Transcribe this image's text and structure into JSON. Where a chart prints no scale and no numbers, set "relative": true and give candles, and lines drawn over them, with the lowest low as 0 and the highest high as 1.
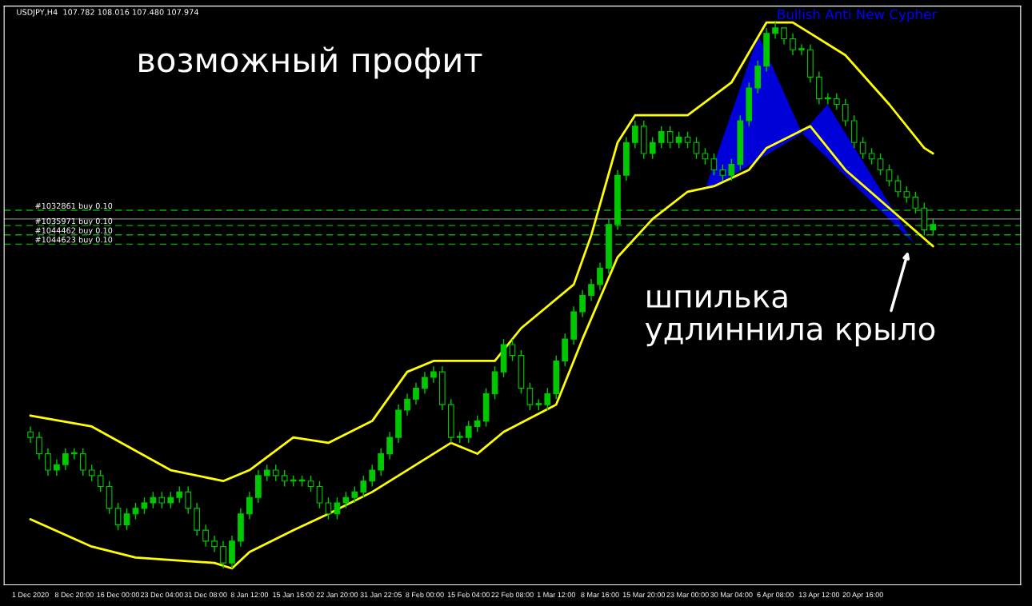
{
  "chart_data": {
    "type": "candlestick",
    "relative": true,
    "title": "USDJPY,H4  107.782 108.016 107.480 107.974",
    "categories": [
      "1 Dec 2020",
      null,
      null,
      null,
      null,
      "8 Dec 20:00",
      null,
      null,
      null,
      null,
      "16 Dec 00:00",
      null,
      null,
      null,
      null,
      "23 Dec 04:00",
      null,
      null,
      null,
      null,
      "31 Dec 08:00",
      null,
      null,
      null,
      null,
      "8 Jan 12:00",
      null,
      null,
      null,
      null,
      "15 Jan 16:00",
      null,
      null,
      null,
      null,
      "22 Jan 20:00",
      null,
      null,
      null,
      null,
      "31 Jan 22:05",
      null,
      null,
      null,
      null,
      "8 Feb 00:00",
      null,
      null,
      null,
      null,
      "15 Feb 04:00",
      null,
      null,
      null,
      null,
      "22 Feb 08:00",
      null,
      null,
      null,
      null,
      "1 Mar 12:00",
      null,
      null,
      null,
      null,
      "8 Mar 16:00",
      null,
      null,
      null,
      null,
      "15 Mar 20:00",
      null,
      null,
      null,
      null,
      "23 Mar 00:00",
      null,
      null,
      null,
      null,
      "30 Mar 04:00",
      null,
      null,
      null,
      null,
      "6 Apr 08:00",
      null,
      null,
      null,
      null,
      "13 Apr 12:00",
      null,
      null,
      null,
      null,
      "20 Apr 16:00",
      null,
      null,
      null,
      null,
      null,
      null,
      null,
      null
    ],
    "color": "#00c800",
    "ohlc": [
      [
        0.25,
        0.26,
        0.23,
        0.24
      ],
      [
        0.24,
        0.25,
        0.2,
        0.21
      ],
      [
        0.21,
        0.22,
        0.17,
        0.18
      ],
      [
        0.18,
        0.2,
        0.17,
        0.19
      ],
      [
        0.19,
        0.22,
        0.18,
        0.21
      ],
      [
        0.21,
        0.22,
        0.2,
        0.21
      ],
      [
        0.21,
        0.22,
        0.17,
        0.18
      ],
      [
        0.18,
        0.19,
        0.16,
        0.17
      ],
      [
        0.17,
        0.18,
        0.14,
        0.15
      ],
      [
        0.15,
        0.16,
        0.1,
        0.11
      ],
      [
        0.11,
        0.12,
        0.07,
        0.08
      ],
      [
        0.08,
        0.11,
        0.07,
        0.1
      ],
      [
        0.1,
        0.12,
        0.09,
        0.11
      ],
      [
        0.11,
        0.13,
        0.1,
        0.12
      ],
      [
        0.12,
        0.14,
        0.11,
        0.13
      ],
      [
        0.13,
        0.14,
        0.11,
        0.12
      ],
      [
        0.12,
        0.14,
        0.11,
        0.13
      ],
      [
        0.13,
        0.15,
        0.12,
        0.14
      ],
      [
        0.14,
        0.15,
        0.1,
        0.11
      ],
      [
        0.11,
        0.12,
        0.06,
        0.07
      ],
      [
        0.07,
        0.08,
        0.04,
        0.05
      ],
      [
        0.05,
        0.06,
        0.03,
        0.04
      ],
      [
        0.04,
        0.05,
        0.0,
        0.01
      ],
      [
        0.01,
        0.06,
        0.0,
        0.05
      ],
      [
        0.05,
        0.11,
        0.04,
        0.1
      ],
      [
        0.1,
        0.14,
        0.09,
        0.13
      ],
      [
        0.13,
        0.18,
        0.12,
        0.17
      ],
      [
        0.17,
        0.19,
        0.16,
        0.18
      ],
      [
        0.18,
        0.19,
        0.16,
        0.17
      ],
      [
        0.17,
        0.18,
        0.15,
        0.16
      ],
      [
        0.16,
        0.17,
        0.15,
        0.16
      ],
      [
        0.16,
        0.17,
        0.15,
        0.16
      ],
      [
        0.16,
        0.17,
        0.14,
        0.15
      ],
      [
        0.15,
        0.16,
        0.11,
        0.12
      ],
      [
        0.12,
        0.13,
        0.09,
        0.1
      ],
      [
        0.1,
        0.13,
        0.09,
        0.12
      ],
      [
        0.12,
        0.14,
        0.11,
        0.13
      ],
      [
        0.13,
        0.15,
        0.12,
        0.14
      ],
      [
        0.14,
        0.17,
        0.13,
        0.16
      ],
      [
        0.16,
        0.19,
        0.15,
        0.18
      ],
      [
        0.18,
        0.22,
        0.17,
        0.21
      ],
      [
        0.21,
        0.25,
        0.2,
        0.24
      ],
      [
        0.24,
        0.3,
        0.23,
        0.29
      ],
      [
        0.29,
        0.32,
        0.28,
        0.31
      ],
      [
        0.31,
        0.34,
        0.3,
        0.33
      ],
      [
        0.33,
        0.36,
        0.32,
        0.35
      ],
      [
        0.35,
        0.37,
        0.34,
        0.36
      ],
      [
        0.36,
        0.37,
        0.29,
        0.3
      ],
      [
        0.3,
        0.31,
        0.23,
        0.24
      ],
      [
        0.24,
        0.25,
        0.23,
        0.24
      ],
      [
        0.24,
        0.27,
        0.23,
        0.26
      ],
      [
        0.26,
        0.28,
        0.25,
        0.27
      ],
      [
        0.27,
        0.33,
        0.26,
        0.32
      ],
      [
        0.32,
        0.37,
        0.31,
        0.36
      ],
      [
        0.36,
        0.42,
        0.35,
        0.41
      ],
      [
        0.41,
        0.42,
        0.38,
        0.39
      ],
      [
        0.39,
        0.4,
        0.32,
        0.33
      ],
      [
        0.33,
        0.34,
        0.29,
        0.3
      ],
      [
        0.3,
        0.31,
        0.29,
        0.3
      ],
      [
        0.3,
        0.33,
        0.29,
        0.32
      ],
      [
        0.32,
        0.39,
        0.31,
        0.38
      ],
      [
        0.38,
        0.43,
        0.37,
        0.42
      ],
      [
        0.42,
        0.48,
        0.41,
        0.47
      ],
      [
        0.47,
        0.51,
        0.46,
        0.5
      ],
      [
        0.5,
        0.53,
        0.49,
        0.52
      ],
      [
        0.52,
        0.56,
        0.51,
        0.55
      ],
      [
        0.55,
        0.64,
        0.54,
        0.63
      ],
      [
        0.63,
        0.73,
        0.62,
        0.72
      ],
      [
        0.72,
        0.79,
        0.71,
        0.78
      ],
      [
        0.78,
        0.82,
        0.77,
        0.81
      ],
      [
        0.81,
        0.82,
        0.75,
        0.76
      ],
      [
        0.76,
        0.79,
        0.75,
        0.78
      ],
      [
        0.78,
        0.81,
        0.77,
        0.8
      ],
      [
        0.8,
        0.81,
        0.77,
        0.78
      ],
      [
        0.78,
        0.8,
        0.77,
        0.79
      ],
      [
        0.79,
        0.8,
        0.77,
        0.78
      ],
      [
        0.78,
        0.79,
        0.75,
        0.76
      ],
      [
        0.76,
        0.77,
        0.74,
        0.75
      ],
      [
        0.75,
        0.76,
        0.72,
        0.73
      ],
      [
        0.73,
        0.74,
        0.71,
        0.72
      ],
      [
        0.72,
        0.75,
        0.71,
        0.74
      ],
      [
        0.74,
        0.83,
        0.73,
        0.82
      ],
      [
        0.82,
        0.89,
        0.81,
        0.88
      ],
      [
        0.88,
        0.93,
        0.87,
        0.92
      ],
      [
        0.92,
        0.99,
        0.91,
        0.98
      ],
      [
        0.98,
        1.0,
        0.97,
        0.99
      ],
      [
        0.99,
        0.99,
        0.96,
        0.97
      ],
      [
        0.97,
        0.98,
        0.94,
        0.95
      ],
      [
        0.95,
        0.96,
        0.94,
        0.95
      ],
      [
        0.95,
        0.96,
        0.89,
        0.9
      ],
      [
        0.9,
        0.91,
        0.85,
        0.86
      ],
      [
        0.86,
        0.87,
        0.85,
        0.86
      ],
      [
        0.86,
        0.87,
        0.84,
        0.85
      ],
      [
        0.85,
        0.86,
        0.81,
        0.82
      ],
      [
        0.82,
        0.83,
        0.77,
        0.78
      ],
      [
        0.78,
        0.79,
        0.75,
        0.76
      ],
      [
        0.76,
        0.77,
        0.74,
        0.75
      ],
      [
        0.75,
        0.76,
        0.72,
        0.73
      ],
      [
        0.73,
        0.74,
        0.7,
        0.71
      ],
      [
        0.71,
        0.72,
        0.68,
        0.69
      ],
      [
        0.69,
        0.7,
        0.67,
        0.68
      ],
      [
        0.68,
        0.69,
        0.65,
        0.66
      ],
      [
        0.66,
        0.67,
        0.61,
        0.62
      ],
      [
        0.62,
        0.64,
        0.61,
        0.63
      ]
    ],
    "series": [
      {
        "type": "line",
        "color": "#ffff00",
        "values": [
          0.28,
          null,
          null,
          null,
          null,
          null,
          null,
          0.26,
          null,
          null,
          null,
          null,
          null,
          null,
          null,
          null,
          0.18,
          null,
          null,
          null,
          null,
          null,
          0.16,
          null,
          null,
          0.18,
          null,
          null,
          null,
          null,
          0.24,
          null,
          null,
          null,
          0.23,
          null,
          null,
          null,
          null,
          0.27,
          null,
          null,
          null,
          0.36,
          null,
          null,
          0.38,
          null,
          null,
          null,
          null,
          null,
          null,
          0.38,
          null,
          null,
          0.44,
          null,
          null,
          null,
          null,
          null,
          0.52,
          null,
          0.61,
          null,
          null,
          0.78,
          null,
          0.83,
          null,
          null,
          null,
          null,
          null,
          0.83,
          null,
          null,
          null,
          null,
          0.89,
          null,
          null,
          null,
          1.0,
          null,
          null,
          1.0,
          null,
          null,
          null,
          null,
          null,
          0.94,
          null,
          null,
          null,
          null,
          0.85,
          null,
          null,
          null,
          0.77,
          0.76
        ]
      },
      {
        "type": "line",
        "color": "#ffff00",
        "values": [
          0.09,
          null,
          null,
          null,
          null,
          null,
          null,
          0.04,
          null,
          null,
          null,
          null,
          0.02,
          null,
          null,
          null,
          null,
          null,
          null,
          null,
          null,
          0.01,
          null,
          0.0,
          null,
          0.03,
          null,
          null,
          null,
          null,
          0.07,
          null,
          null,
          null,
          0.1,
          null,
          null,
          null,
          null,
          0.14,
          null,
          null,
          null,
          0.18,
          null,
          null,
          null,
          null,
          0.23,
          null,
          null,
          0.21,
          null,
          null,
          0.25,
          null,
          null,
          null,
          null,
          null,
          0.3,
          null,
          null,
          0.42,
          null,
          null,
          null,
          0.57,
          null,
          null,
          null,
          0.64,
          null,
          null,
          null,
          0.69,
          null,
          null,
          0.7,
          null,
          null,
          null,
          0.73,
          null,
          0.77,
          null,
          null,
          null,
          null,
          0.81,
          null,
          null,
          null,
          0.73,
          null,
          null,
          null,
          null,
          0.66,
          null,
          null,
          null,
          null,
          0.59
        ]
      }
    ],
    "ref_lines": [
      {
        "axis": "y",
        "value": 0.656,
        "label": "#1032861 buy 0.10",
        "color": "#00b000",
        "line_style": "dashed"
      },
      {
        "axis": "y",
        "value": 0.64,
        "color": "#808080",
        "line_style": "solid"
      },
      {
        "axis": "y",
        "value": 0.628,
        "label": "#1035971 buy 0.10",
        "color": "#00b000",
        "line_style": "dashed"
      },
      {
        "axis": "y",
        "value": 0.611,
        "label": "#1044462 buy 0.10",
        "color": "#00b000",
        "line_style": "dashed"
      },
      {
        "axis": "y",
        "value": 0.594,
        "label": "#1044623 buy 0.10",
        "color": "#00b000",
        "line_style": "dashed"
      }
    ],
    "annotations": [
      "Bullish Anti New Cypher",
      "возможный профит",
      "шпилька\nудлиннила крыло"
    ],
    "grid": false,
    "legend": false
  }
}
